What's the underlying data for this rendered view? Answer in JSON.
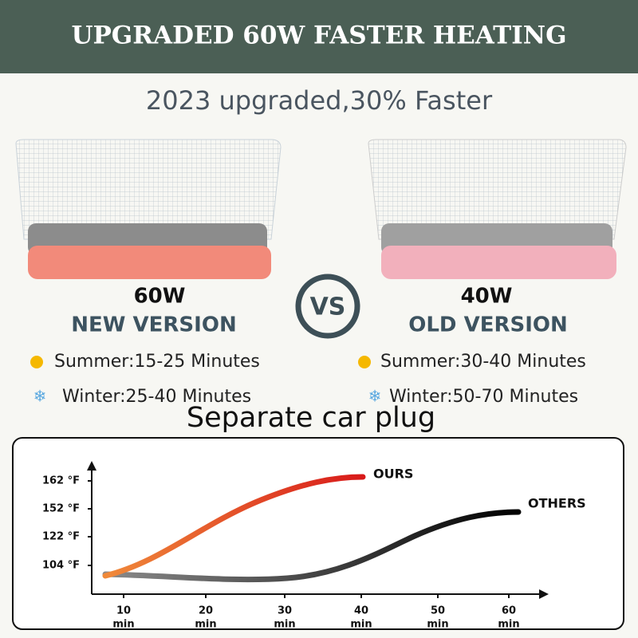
{
  "header": {
    "title": "UPGRADED 60W FASTER HEATING",
    "subtitle": "2023 upgraded,30% Faster"
  },
  "comparison": {
    "new": {
      "power": "60W",
      "label": "NEW VERSION",
      "summer": "Summer:15-25 Minutes",
      "winter": "Winter:25-40 Minutes"
    },
    "vs": "VS",
    "old": {
      "power": "40W",
      "label": "OLD VERSION",
      "summer": "Summer:30-40 Minutes",
      "winter": "Winter:50-70 Minutes"
    }
  },
  "caption": "Separate car plug",
  "graph": {
    "y_labels": [
      "162 °F",
      "152 °F",
      "122 °F",
      "104 °F"
    ],
    "x_labels": [
      {
        "number": "10",
        "unit": "min"
      },
      {
        "number": "20",
        "unit": "min"
      },
      {
        "number": "30",
        "unit": "min"
      },
      {
        "number": "40",
        "unit": "min"
      },
      {
        "number": "50",
        "unit": "min"
      },
      {
        "number": "60",
        "unit": "min"
      }
    ],
    "curves": {
      "ours": "OURS",
      "others": "OTHERS"
    }
  }
}
